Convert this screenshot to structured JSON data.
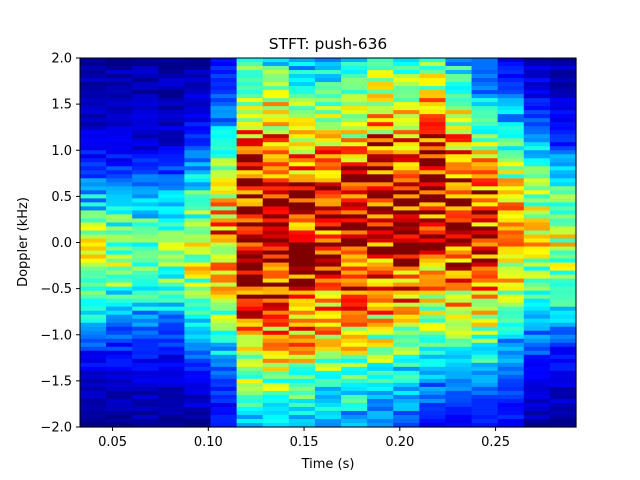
{
  "chart_data": {
    "type": "heatmap",
    "title": "STFT: push-636",
    "xlabel": "Time (s)",
    "ylabel": "Doppler (kHz)",
    "xlim": [
      0.033,
      0.292
    ],
    "ylim": [
      -2.0,
      2.0
    ],
    "x_ticks": [
      0.05,
      0.1,
      0.15,
      0.2,
      0.25
    ],
    "x_tick_labels": [
      "0.05",
      "0.10",
      "0.15",
      "0.20",
      "0.25"
    ],
    "y_ticks": [
      2.0,
      1.5,
      1.0,
      0.5,
      0.0,
      -0.5,
      -1.0,
      -1.5,
      -2.0
    ],
    "y_tick_labels": [
      "2.0",
      "1.5",
      "1.0",
      "0.5",
      "0.0",
      "−0.5",
      "−1.0",
      "−1.5",
      "−2.0"
    ],
    "colormap": "jet",
    "grid": false,
    "time_bins": [
      0.04,
      0.054,
      0.067,
      0.081,
      0.094,
      0.108,
      0.121,
      0.135,
      0.148,
      0.162,
      0.175,
      0.189,
      0.202,
      0.216,
      0.229,
      0.243,
      0.256,
      0.27,
      0.283
    ],
    "doppler_profile_center_khz": [
      -0.15,
      -0.15,
      -0.15,
      -0.15,
      -0.1,
      0.0,
      0.1,
      0.1,
      0.0,
      0.1,
      0.1,
      0.3,
      0.3,
      0.5,
      0.3,
      0.1,
      0.1,
      0.1,
      0.0
    ],
    "band_intensity": [
      0.55,
      0.5,
      0.5,
      0.5,
      0.6,
      0.75,
      1.0,
      1.0,
      0.95,
      0.9,
      0.95,
      0.95,
      1.0,
      1.0,
      0.95,
      0.9,
      0.75,
      0.6,
      0.55
    ],
    "band_width_khz": [
      0.6,
      0.6,
      0.6,
      0.6,
      0.7,
      0.9,
      1.3,
      1.4,
      1.3,
      1.3,
      1.3,
      1.3,
      1.2,
      1.2,
      1.1,
      1.0,
      0.9,
      0.8,
      0.7
    ]
  }
}
